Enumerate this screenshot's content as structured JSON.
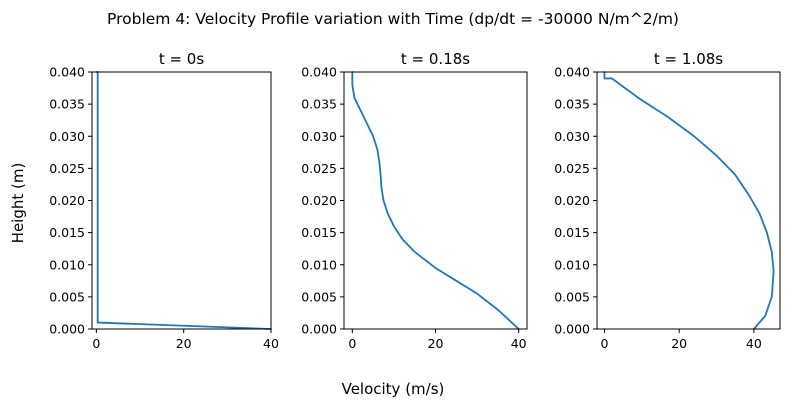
{
  "figure": {
    "title": "Problem 4: Velocity Profile variation with Time (dp/dt = -30000 N/m^2/m)",
    "xlabel": "Velocity  (m/s)",
    "ylabel": "Height (m)"
  },
  "chart_data": [
    {
      "type": "line",
      "title": "t = 0s",
      "xlim": [
        -1,
        40
      ],
      "ylim": [
        0,
        0.04
      ],
      "xticks": [
        "0",
        "20",
        "40"
      ],
      "yticks": [
        "0.000",
        "0.005",
        "0.010",
        "0.015",
        "0.020",
        "0.025",
        "0.030",
        "0.035",
        "0.040"
      ],
      "grid": false,
      "color": "#1f77b4",
      "series": [
        {
          "x": [
            40,
            0.3,
            0.3,
            0
          ],
          "y": [
            0,
            0.001,
            0.04,
            0.04
          ]
        }
      ]
    },
    {
      "type": "line",
      "title": "t = 0.18s",
      "xlim": [
        -2,
        42
      ],
      "ylim": [
        0,
        0.04
      ],
      "xticks": [
        "0",
        "20",
        "40"
      ],
      "yticks": [
        "0.000",
        "0.005",
        "0.010",
        "0.015",
        "0.020",
        "0.025",
        "0.030",
        "0.035",
        "0.040"
      ],
      "grid": false,
      "color": "#1f77b4",
      "series": [
        {
          "x": [
            40,
            35,
            30,
            25,
            20,
            15,
            12,
            10,
            8.5,
            7.5,
            7.0,
            6.8,
            6.5,
            6.0,
            5.0,
            3.5,
            2.0,
            0.5,
            0,
            0
          ],
          "y": [
            0,
            0.003,
            0.0055,
            0.0075,
            0.0095,
            0.012,
            0.014,
            0.016,
            0.018,
            0.02,
            0.022,
            0.024,
            0.026,
            0.028,
            0.03,
            0.032,
            0.034,
            0.036,
            0.038,
            0.04
          ]
        }
      ]
    },
    {
      "type": "line",
      "title": "t = 1.08s",
      "xlim": [
        -2,
        47
      ],
      "ylim": [
        0,
        0.04
      ],
      "xticks": [
        "0",
        "20",
        "40"
      ],
      "yticks": [
        "0.000",
        "0.005",
        "0.010",
        "0.015",
        "0.020",
        "0.025",
        "0.030",
        "0.035",
        "0.040"
      ],
      "grid": false,
      "color": "#1f77b4",
      "series": [
        {
          "x": [
            40,
            43,
            44.8,
            45.3,
            44.8,
            43.5,
            41.5,
            38.5,
            35,
            30,
            24,
            17,
            9,
            2,
            0,
            0
          ],
          "y": [
            0,
            0.002,
            0.005,
            0.009,
            0.012,
            0.015,
            0.018,
            0.021,
            0.024,
            0.027,
            0.03,
            0.033,
            0.036,
            0.039,
            0.039,
            0.04
          ]
        }
      ]
    }
  ]
}
